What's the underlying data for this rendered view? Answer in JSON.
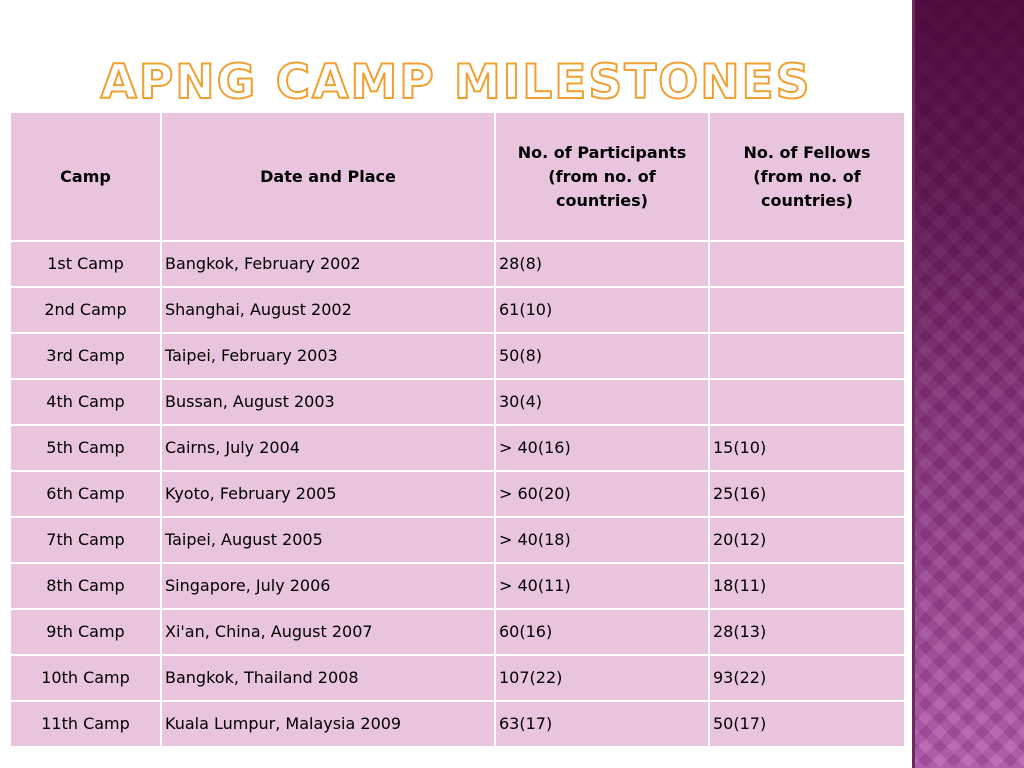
{
  "title": "APNG CAMP MILESTONES",
  "table": {
    "headers": {
      "camp": "Camp",
      "date_place": "Date and Place",
      "participants": "No. of Participants (from no. of countries)",
      "fellows": "No. of Fellows (from no. of countries)"
    },
    "rows": [
      {
        "camp": "1st Camp",
        "date_place": "Bangkok, February 2002",
        "participants": "28(8)",
        "fellows": ""
      },
      {
        "camp": "2nd Camp",
        "date_place": "Shanghai, August 2002",
        "participants": "61(10)",
        "fellows": ""
      },
      {
        "camp": "3rd Camp",
        "date_place": "Taipei, February 2003",
        "participants": "50(8)",
        "fellows": ""
      },
      {
        "camp": "4th Camp",
        "date_place": "Bussan, August 2003",
        "participants": "30(4)",
        "fellows": ""
      },
      {
        "camp": "5th Camp",
        "date_place": "Cairns, July 2004",
        "participants": "> 40(16)",
        "fellows": "15(10)"
      },
      {
        "camp": "6th Camp",
        "date_place": "Kyoto, February 2005",
        "participants": "> 60(20)",
        "fellows": "25(16)"
      },
      {
        "camp": "7th Camp",
        "date_place": "Taipei, August 2005",
        "participants": "> 40(18)",
        "fellows": "20(12)"
      },
      {
        "camp": "8th Camp",
        "date_place": "Singapore, July 2006",
        "participants": "> 40(11)",
        "fellows": "18(11)"
      },
      {
        "camp": "9th Camp",
        "date_place": "Xi'an, China, August 2007",
        "participants": "60(16)",
        "fellows": "28(13)"
      },
      {
        "camp": "10th Camp",
        "date_place": "Bangkok, Thailand 2008",
        "participants": "107(22)",
        "fellows": "93(22)"
      },
      {
        "camp": "11th Camp",
        "date_place": "Kuala Lumpur, Malaysia 2009",
        "participants": "63(17)",
        "fellows": "50(17)"
      }
    ]
  },
  "colors": {
    "title_outline": "#f0a030",
    "cell_background": "#e9c4de",
    "side_panel": "#8a3580"
  }
}
